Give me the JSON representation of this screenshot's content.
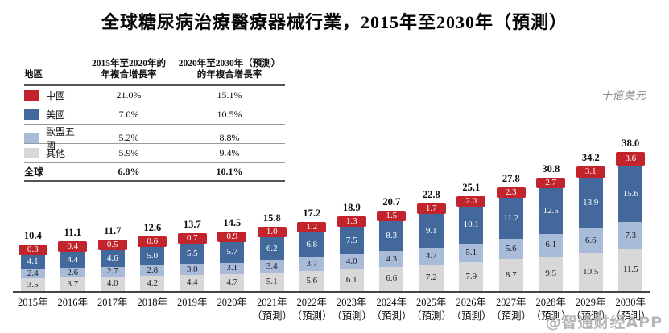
{
  "title": "全球糖尿病治療醫療器械行業，2015年至2030年（預測）",
  "unit_label": "十億美元",
  "watermark": "@智通财经APP",
  "legend_table": {
    "col_region": "地區",
    "col_cagr1": [
      "2015年至2020年的",
      "年複合增長率"
    ],
    "col_cagr2": [
      "2020年至2030年（預測）",
      "的年複合增長率"
    ],
    "rows": [
      {
        "key": "china",
        "name": "中國",
        "color": "#C3232A",
        "cagr1": "21.0%",
        "cagr2": "15.1%"
      },
      {
        "key": "usa",
        "name": "美國",
        "color": "#43689B",
        "cagr1": "7.0%",
        "cagr2": "10.5%"
      },
      {
        "key": "eu5",
        "name": "歐盟五國",
        "color": "#A8BCD9",
        "cagr1": "5.2%",
        "cagr2": "8.8%"
      },
      {
        "key": "others",
        "name": "其他",
        "color": "#D8D8DA",
        "cagr1": "5.9%",
        "cagr2": "9.4%"
      }
    ],
    "total": {
      "name": "全球",
      "cagr1": "6.8%",
      "cagr2": "10.1%"
    }
  },
  "chart_data": {
    "type": "bar",
    "stacked": true,
    "title": "全球糖尿病治療醫療器械行業，2015年至2030年（預測）",
    "ylabel": "十億美元",
    "ylim": [
      0,
      40
    ],
    "grid": false,
    "legend_position": "top-left-table",
    "categories": [
      {
        "year": "2015年",
        "note": ""
      },
      {
        "year": "2016年",
        "note": ""
      },
      {
        "year": "2017年",
        "note": ""
      },
      {
        "year": "2018年",
        "note": ""
      },
      {
        "year": "2019年",
        "note": ""
      },
      {
        "year": "2020年",
        "note": ""
      },
      {
        "year": "2021年",
        "note": "（預測）"
      },
      {
        "year": "2022年",
        "note": "（預測）"
      },
      {
        "year": "2023年",
        "note": "（預測）"
      },
      {
        "year": "2024年",
        "note": "（預測）"
      },
      {
        "year": "2025年",
        "note": "（預測）"
      },
      {
        "year": "2026年",
        "note": "（預測）"
      },
      {
        "year": "2027年",
        "note": "（預測）"
      },
      {
        "year": "2028年",
        "note": "（預測）"
      },
      {
        "year": "2029年",
        "note": "（預測）"
      },
      {
        "year": "2030年",
        "note": "（預測）"
      }
    ],
    "series": [
      {
        "key": "others",
        "name": "其他",
        "color": "#D8D8DA",
        "label_color": "#1B1B1B",
        "values": [
          3.5,
          3.7,
          4.0,
          4.2,
          4.4,
          4.7,
          5.1,
          5.6,
          6.1,
          6.6,
          7.2,
          7.9,
          8.7,
          9.5,
          10.5,
          11.5
        ]
      },
      {
        "key": "eu5",
        "name": "歐盟五國",
        "color": "#A8BCD9",
        "label_color": "#1B1B1B",
        "values": [
          2.4,
          2.6,
          2.7,
          2.8,
          3.0,
          3.1,
          3.4,
          3.7,
          4.0,
          4.3,
          4.7,
          5.1,
          5.6,
          6.1,
          6.6,
          7.3
        ]
      },
      {
        "key": "usa",
        "name": "美國",
        "color": "#43689B",
        "label_color": "#FFFFFF",
        "values": [
          4.1,
          4.4,
          4.6,
          5.0,
          5.5,
          5.7,
          6.2,
          6.8,
          7.5,
          8.3,
          9.1,
          10.1,
          11.2,
          12.5,
          13.9,
          15.6
        ]
      },
      {
        "key": "china",
        "name": "中國",
        "color": "#C3232A",
        "label_color": "#FFFFFF",
        "values": [
          0.3,
          0.4,
          0.5,
          0.6,
          0.7,
          0.9,
          1.0,
          1.2,
          1.3,
          1.5,
          1.7,
          2.0,
          2.3,
          2.7,
          3.1,
          3.6
        ]
      }
    ],
    "totals": [
      10.4,
      11.1,
      11.7,
      12.6,
      13.7,
      14.5,
      15.8,
      17.2,
      18.9,
      20.7,
      22.8,
      25.1,
      27.8,
      30.8,
      34.2,
      38.0
    ]
  }
}
